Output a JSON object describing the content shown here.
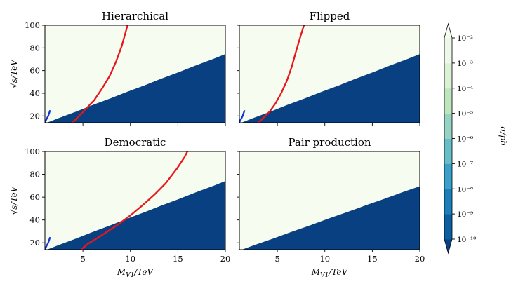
{
  "chart_data": [
    {
      "type": "heatmap",
      "title": "Hierarchical",
      "xlabel": "",
      "ylabel": "√s/TeV",
      "xlim": [
        1,
        20
      ],
      "ylim": [
        14,
        100
      ],
      "xticks": [],
      "yticks": [
        20,
        40,
        60,
        80,
        100
      ],
      "contour_lines": [
        {
          "color": "#e8161d",
          "points": [
            [
              3.9,
              14
            ],
            [
              4.6,
              20
            ],
            [
              5.3,
              26
            ],
            [
              6.2,
              34
            ],
            [
              7.0,
              44
            ],
            [
              7.8,
              55
            ],
            [
              8.5,
              68
            ],
            [
              9.1,
              82
            ],
            [
              9.7,
              100
            ]
          ]
        },
        {
          "color": "#1438d8",
          "points": [
            [
              1.0,
              14.5
            ],
            [
              1.35,
              20
            ],
            [
              1.55,
              25
            ]
          ]
        }
      ]
    },
    {
      "type": "heatmap",
      "title": "Flipped",
      "xlabel": "",
      "ylabel": "",
      "xlim": [
        1,
        20
      ],
      "ylim": [
        14,
        100
      ],
      "xticks": [],
      "yticks": [],
      "contour_lines": [
        {
          "color": "#e8161d",
          "points": [
            [
              3.0,
              14
            ],
            [
              3.6,
              19
            ],
            [
              4.2,
              24
            ],
            [
              4.8,
              31
            ],
            [
              5.4,
              40
            ],
            [
              6.0,
              51
            ],
            [
              6.5,
              63
            ],
            [
              7.0,
              78
            ],
            [
              7.5,
              92
            ],
            [
              7.8,
              100
            ]
          ]
        },
        {
          "color": "#1438d8",
          "points": [
            [
              1.0,
              14.5
            ],
            [
              1.35,
              20
            ],
            [
              1.55,
              25
            ]
          ]
        }
      ]
    },
    {
      "type": "heatmap",
      "title": "Democratic",
      "xlabel": "M_V1/TeV",
      "ylabel": "√s/TeV",
      "xlim": [
        1,
        20
      ],
      "ylim": [
        14,
        100
      ],
      "xticks": [
        5,
        10,
        15,
        20
      ],
      "yticks": [
        20,
        40,
        60,
        80,
        100
      ],
      "contour_lines": [
        {
          "color": "#e8161d",
          "points": [
            [
              4.8,
              14
            ],
            [
              5.5,
              19
            ],
            [
              6.5,
              24
            ],
            [
              7.6,
              30
            ],
            [
              8.7,
              36
            ],
            [
              10.0,
              44
            ],
            [
              11.3,
              53
            ],
            [
              12.5,
              62
            ],
            [
              13.7,
              72
            ],
            [
              14.9,
              85
            ],
            [
              15.7,
              95
            ],
            [
              16.0,
              100
            ]
          ]
        },
        {
          "color": "#1438d8",
          "points": [
            [
              1.0,
              14.5
            ],
            [
              1.35,
              20
            ],
            [
              1.55,
              25
            ]
          ]
        }
      ]
    },
    {
      "type": "heatmap",
      "title": "Pair production",
      "xlabel": "M_V1/TeV",
      "ylabel": "",
      "xlim": [
        1,
        20
      ],
      "ylim": [
        14,
        100
      ],
      "xticks": [
        5,
        10,
        15,
        20
      ],
      "yticks": [],
      "contour_lines": []
    }
  ],
  "colorbar": {
    "label": "σ/pb",
    "scale": "log",
    "levels_exponent": [
      -10,
      -9,
      -8,
      -7,
      -6,
      -5,
      -4,
      -3,
      -2
    ],
    "colors": [
      "#084081",
      "#0b5ea0",
      "#1d7fb9",
      "#3aa1cb",
      "#66bec8",
      "#96d3c0",
      "#bee5bd",
      "#dbf1d6",
      "#eef8ea",
      "#f7fcf0"
    ]
  },
  "axes_text": {
    "y_tick_labels": [
      "20",
      "40",
      "60",
      "80",
      "100"
    ],
    "x_tick_labels": [
      "5",
      "10",
      "15",
      "20"
    ],
    "colorbar_tick_labels": [
      "10⁻¹⁰",
      "10⁻⁹",
      "10⁻⁸",
      "10⁻⁷",
      "10⁻⁶",
      "10⁻⁵",
      "10⁻⁴",
      "10⁻³",
      "10⁻²"
    ]
  }
}
